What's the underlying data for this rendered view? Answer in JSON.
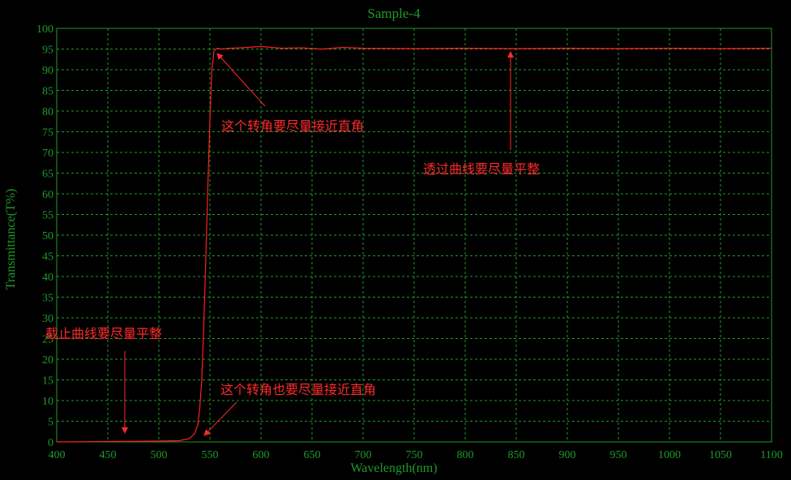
{
  "chart_data": {
    "type": "line",
    "title": "Sample-4",
    "xlabel": "Wavelength(nm)",
    "ylabel": "Transmittance(T%)",
    "xlim": [
      400,
      1100
    ],
    "ylim": [
      0,
      100
    ],
    "x_ticks": [
      400,
      450,
      500,
      550,
      600,
      650,
      700,
      750,
      800,
      850,
      900,
      950,
      1000,
      1050,
      1100
    ],
    "y_ticks": [
      0,
      5,
      10,
      15,
      20,
      25,
      30,
      35,
      40,
      45,
      50,
      55,
      60,
      65,
      70,
      75,
      80,
      85,
      90,
      95,
      100
    ],
    "grid": true,
    "colors": {
      "background": "#000000",
      "axes": "#1f9a2a",
      "grid": "#1f9a2a",
      "series": "#ff1e1e",
      "annotation": "#ff2a2a"
    },
    "series": [
      {
        "x": [
          400,
          450,
          500,
          520,
          530,
          535,
          538,
          540,
          542,
          544,
          546,
          548,
          550,
          552,
          554,
          556,
          558,
          560,
          570,
          580,
          600,
          620,
          640,
          660,
          680,
          700,
          750,
          800,
          850,
          900,
          950,
          1000,
          1050,
          1100
        ],
        "y": [
          0,
          0.1,
          0.2,
          0.3,
          0.8,
          2,
          4,
          8,
          15,
          28,
          45,
          62,
          78,
          90,
          94.5,
          95.1,
          95.2,
          95.0,
          95.2,
          95.3,
          95.6,
          95.2,
          95.3,
          95.0,
          95.4,
          95.2,
          95.1,
          95.2,
          95.1,
          95.2,
          95.1,
          95.2,
          95.1,
          95.2
        ]
      }
    ],
    "annotations": [
      {
        "text": "这个转角要尽量接近直角",
        "arrow_to": [
          553,
          95
        ]
      },
      {
        "text": "透过曲线要尽量平整",
        "arrow_to": [
          845,
          95
        ]
      },
      {
        "text": "截止曲线要尽量平整",
        "arrow_to": [
          468,
          1
        ]
      },
      {
        "text": "这个转角也要尽量接近直角",
        "arrow_to": [
          547,
          1
        ]
      }
    ]
  }
}
